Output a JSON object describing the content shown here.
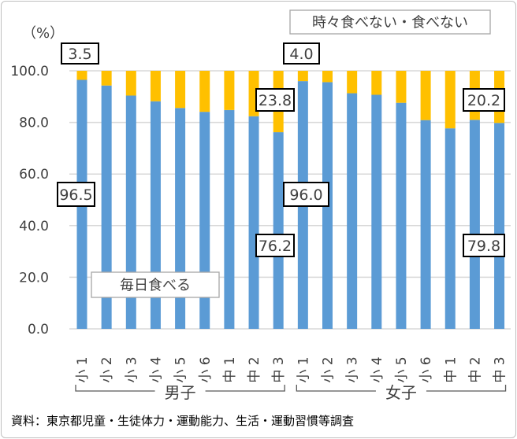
{
  "chart_data": {
    "type": "bar",
    "stacked": true,
    "y_unit_label": "（%）",
    "ylim": [
      0,
      100
    ],
    "yticks": [
      "0.0",
      "20.0",
      "40.0",
      "60.0",
      "80.0",
      "100.0"
    ],
    "grid": true,
    "categories": [
      "小1",
      "小2",
      "小3",
      "小4",
      "小5",
      "小6",
      "中1",
      "中2",
      "中3",
      "小1",
      "小2",
      "小3",
      "小4",
      "小5",
      "小6",
      "中1",
      "中2",
      "中3"
    ],
    "groups": [
      {
        "label": "男子",
        "count": 9
      },
      {
        "label": "女子",
        "count": 9
      }
    ],
    "series": [
      {
        "name": "毎日食べる",
        "color": "#5b9bd5",
        "values": [
          96.5,
          94.3,
          90.4,
          88.2,
          85.6,
          84.1,
          84.8,
          82.4,
          76.2,
          96.0,
          95.6,
          91.3,
          90.7,
          87.6,
          80.9,
          77.7,
          81.0,
          79.8
        ]
      },
      {
        "name": "時々食べない・食べない",
        "color": "#ffc000",
        "values": [
          3.5,
          5.7,
          9.6,
          11.8,
          14.4,
          15.9,
          15.2,
          17.6,
          23.8,
          4.0,
          4.4,
          8.7,
          9.3,
          12.4,
          19.1,
          22.3,
          19.0,
          20.2
        ]
      }
    ],
    "data_labels": [
      {
        "text": "3.5"
      },
      {
        "text": "96.5"
      },
      {
        "text": "23.8"
      },
      {
        "text": "76.2"
      },
      {
        "text": "4.0"
      },
      {
        "text": "96.0"
      },
      {
        "text": "20.2"
      },
      {
        "text": "79.8"
      }
    ],
    "source": "資料：東京都児童・生徒体力・運動能力、生活・運動習慣等調査"
  }
}
